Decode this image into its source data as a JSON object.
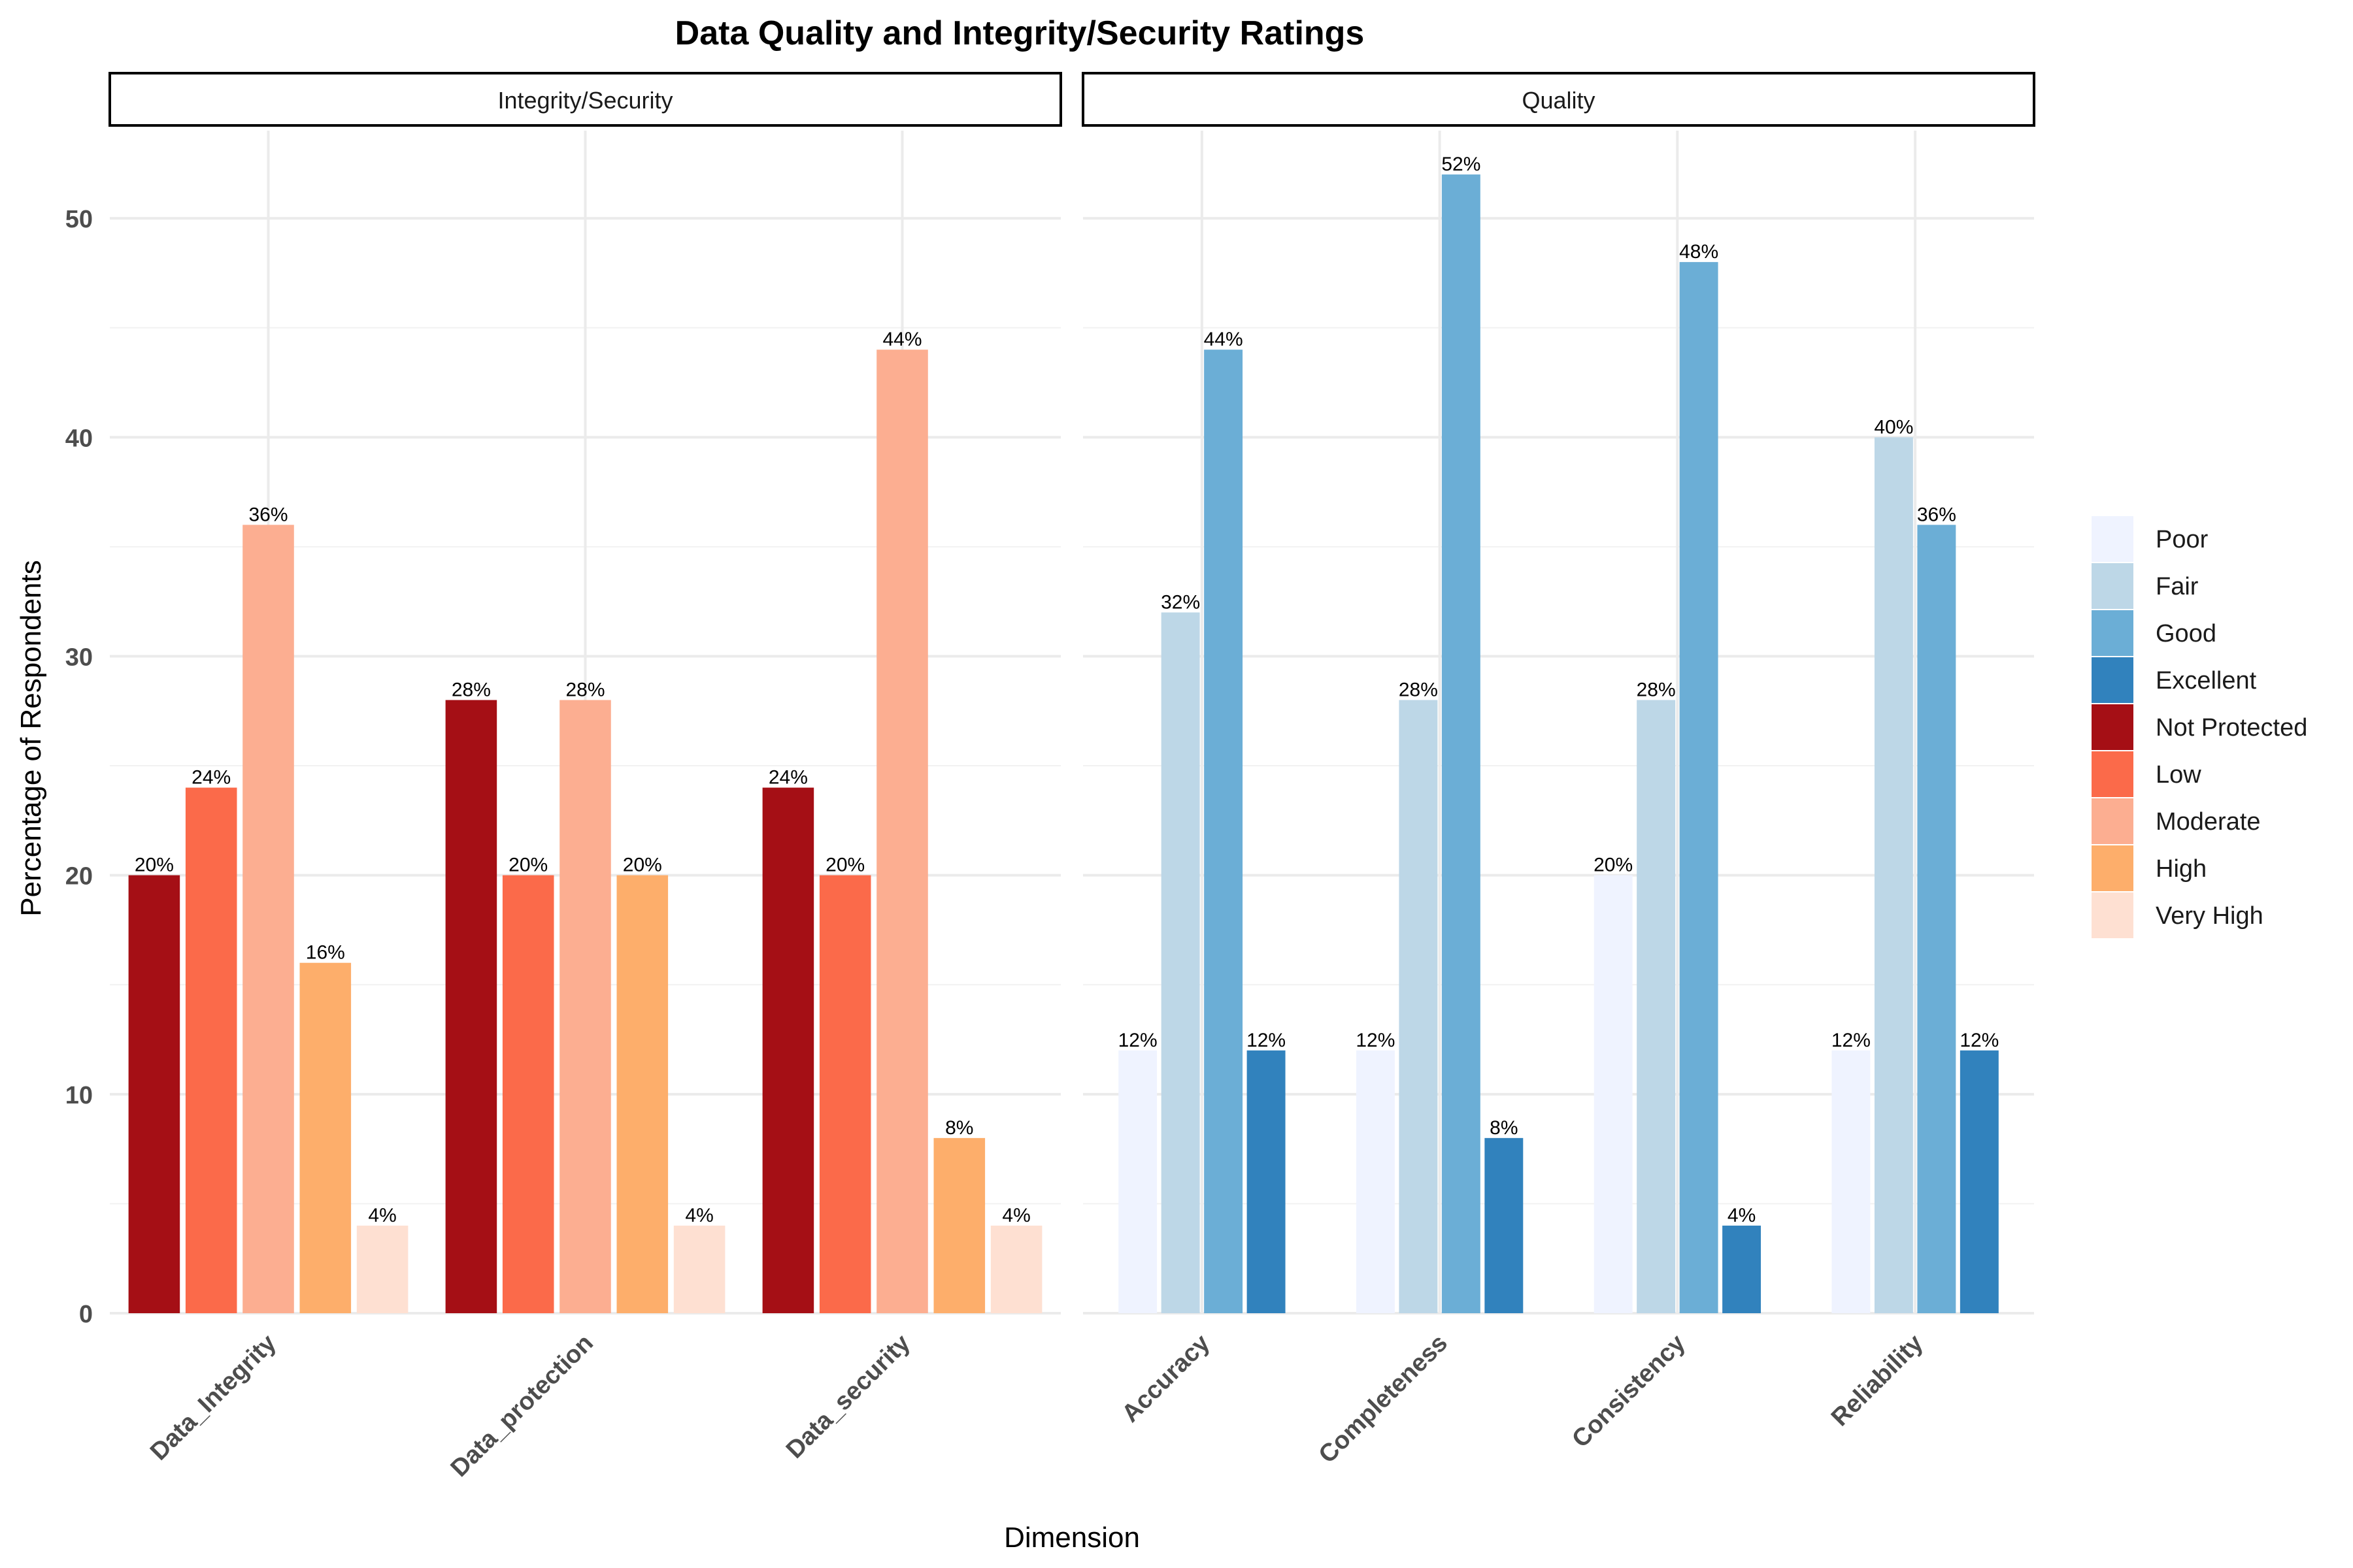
{
  "chart_data": {
    "type": "bar",
    "title": "Data Quality and Integrity/Security Ratings",
    "xlabel": "Dimension",
    "ylabel": "Percentage of Respondents",
    "ylim": [
      0,
      54
    ],
    "yticks": [
      0,
      10,
      20,
      30,
      40,
      50
    ],
    "grid": true,
    "legend_position": "right",
    "value_suffix": "%",
    "legend": [
      {
        "name": "Poor",
        "color": "#eff3ff"
      },
      {
        "name": "Fair",
        "color": "#bdd7e7"
      },
      {
        "name": "Good",
        "color": "#6baed6"
      },
      {
        "name": "Excellent",
        "color": "#3182bd"
      },
      {
        "name": "Not Protected",
        "color": "#a50f15"
      },
      {
        "name": "Low",
        "color": "#fb6a4a"
      },
      {
        "name": "Moderate",
        "color": "#fcae91"
      },
      {
        "name": "High",
        "color": "#fdae6b"
      },
      {
        "name": "Very High",
        "color": "#fee0d2"
      }
    ],
    "facets": [
      {
        "name": "Integrity/Security",
        "levels": [
          "Not Protected",
          "Low",
          "Moderate",
          "High",
          "Very High"
        ],
        "categories": [
          "Data_Integrity",
          "Data_protection",
          "Data_security"
        ],
        "values": [
          [
            20,
            24,
            36,
            16,
            4
          ],
          [
            28,
            20,
            28,
            20,
            4
          ],
          [
            24,
            20,
            44,
            8,
            4
          ]
        ]
      },
      {
        "name": "Quality",
        "levels": [
          "Poor",
          "Fair",
          "Good",
          "Excellent"
        ],
        "categories": [
          "Accuracy",
          "Completeness",
          "Consistency",
          "Reliability"
        ],
        "values": [
          [
            12,
            32,
            44,
            12
          ],
          [
            12,
            28,
            52,
            8
          ],
          [
            20,
            28,
            48,
            4
          ],
          [
            12,
            40,
            36,
            12
          ]
        ]
      }
    ]
  }
}
